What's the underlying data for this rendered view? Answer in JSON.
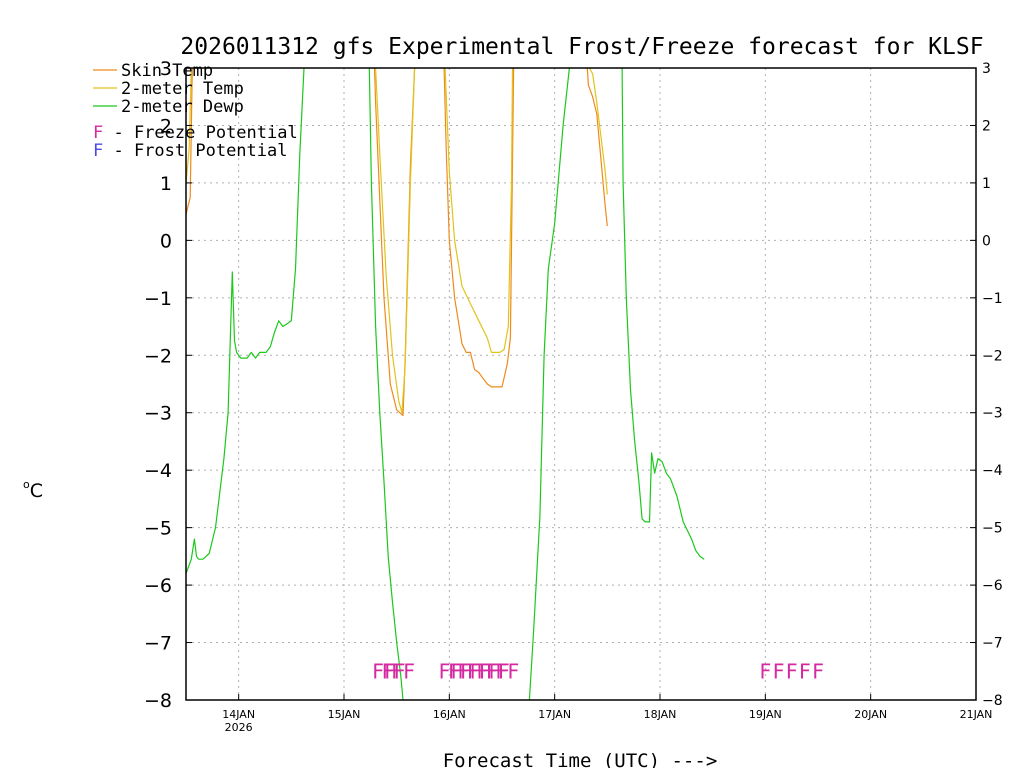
{
  "chart_data": {
    "type": "line",
    "title": "2026011312 gfs Experimental Frost/Freeze forecast for KLSF",
    "xlabel": "Forecast Time (UTC) --->",
    "ylabel": "°C",
    "ylabel_sup": "o",
    "ylabel_main": "C",
    "ylim": [
      -8,
      3
    ],
    "yticks": [
      3,
      2,
      1,
      0,
      -1,
      -2,
      -3,
      -4,
      -5,
      -6,
      -7,
      -8
    ],
    "ytick_labels_left": [
      "3",
      "2",
      "1",
      "0",
      "−1",
      "−2",
      "−3",
      "−4",
      "−5",
      "−6",
      "−7",
      "−8"
    ],
    "ytick_labels_right": [
      "3",
      "2",
      "1",
      "0",
      "−1",
      "−2",
      "−3",
      "−4",
      "−5",
      "−6",
      "−7",
      "−8"
    ],
    "xlim": [
      -0.5,
      7.0
    ],
    "xticks": [
      {
        "day": 0,
        "label": "14JAN",
        "sub": "2026"
      },
      {
        "day": 1,
        "label": "15JAN",
        "sub": ""
      },
      {
        "day": 2,
        "label": "16JAN",
        "sub": ""
      },
      {
        "day": 3,
        "label": "17JAN",
        "sub": ""
      },
      {
        "day": 4,
        "label": "18JAN",
        "sub": ""
      },
      {
        "day": 5,
        "label": "19JAN",
        "sub": ""
      },
      {
        "day": 6,
        "label": "20JAN",
        "sub": ""
      },
      {
        "day": 7,
        "label": "21JAN",
        "sub": ""
      }
    ],
    "x_units": "days since 14JAN 00Z",
    "grid": true,
    "legend": {
      "placement": "top-left",
      "entries": [
        {
          "label": "Skin Temp",
          "color": "#ef8a1c"
        },
        {
          "label": "2-meter Temp",
          "color": "#e0c41c"
        },
        {
          "label": "2-meter Dewp",
          "color": "#1cc81c"
        }
      ],
      "potentials": [
        {
          "letter": "F",
          "text": " - Freeze Potential",
          "color": "#d42aa0"
        },
        {
          "letter": "F",
          "text": " - Frost Potential",
          "color": "#4a4ae6"
        }
      ]
    },
    "series": [
      {
        "name": "Skin Temp",
        "color": "#ef8a1c",
        "segments": [
          [
            [
              -0.5,
              0.45
            ],
            [
              -0.46,
              0.75
            ],
            [
              -0.44,
              3.1
            ]
          ],
          [
            [
              1.29,
              3.1
            ],
            [
              1.3,
              2.4
            ],
            [
              1.38,
              -1.0
            ],
            [
              1.44,
              -2.5
            ],
            [
              1.5,
              -2.95
            ],
            [
              1.56,
              -3.05
            ],
            [
              1.58,
              -2.1
            ],
            [
              1.63,
              1.3
            ],
            [
              1.67,
              3.1
            ]
          ],
          [
            [
              1.95,
              3.1
            ],
            [
              1.97,
              1.6
            ],
            [
              2.0,
              0.0
            ],
            [
              2.05,
              -1.0
            ],
            [
              2.12,
              -1.8
            ],
            [
              2.16,
              -1.95
            ],
            [
              2.2,
              -1.95
            ],
            [
              2.24,
              -2.25
            ],
            [
              2.28,
              -2.3
            ],
            [
              2.32,
              -2.4
            ],
            [
              2.36,
              -2.5
            ],
            [
              2.4,
              -2.55
            ],
            [
              2.45,
              -2.55
            ],
            [
              2.5,
              -2.55
            ],
            [
              2.55,
              -2.15
            ],
            [
              2.58,
              -1.7
            ],
            [
              2.61,
              3.1
            ]
          ],
          [
            [
              3.31,
              3.1
            ],
            [
              3.32,
              2.7
            ],
            [
              3.36,
              2.5
            ],
            [
              3.4,
              2.2
            ],
            [
              3.44,
              1.4
            ],
            [
              3.48,
              0.6
            ],
            [
              3.5,
              0.25
            ]
          ]
        ]
      },
      {
        "name": "2-meter Temp",
        "color": "#e0c41c",
        "segments": [
          [
            [
              -0.5,
              1.0
            ],
            [
              -0.47,
              1.6
            ],
            [
              -0.45,
              3.1
            ]
          ],
          [
            [
              1.3,
              3.1
            ],
            [
              1.34,
              1.5
            ],
            [
              1.4,
              -0.6
            ],
            [
              1.46,
              -2.0
            ],
            [
              1.52,
              -2.8
            ],
            [
              1.55,
              -3.0
            ],
            [
              1.58,
              -2.2
            ],
            [
              1.63,
              1.0
            ],
            [
              1.67,
              3.1
            ]
          ],
          [
            [
              1.96,
              3.1
            ],
            [
              2.0,
              1.2
            ],
            [
              2.05,
              0.0
            ],
            [
              2.12,
              -0.8
            ],
            [
              2.2,
              -1.1
            ],
            [
              2.28,
              -1.4
            ],
            [
              2.36,
              -1.7
            ],
            [
              2.4,
              -1.95
            ],
            [
              2.48,
              -1.95
            ],
            [
              2.52,
              -1.9
            ],
            [
              2.56,
              -1.5
            ],
            [
              2.59,
              1.0
            ],
            [
              2.6,
              3.1
            ]
          ],
          [
            [
              3.33,
              3.1
            ],
            [
              3.36,
              2.9
            ],
            [
              3.4,
              2.4
            ],
            [
              3.44,
              1.8
            ],
            [
              3.48,
              1.2
            ],
            [
              3.5,
              0.8
            ]
          ]
        ]
      },
      {
        "name": "2-meter Dewp",
        "color": "#1cc81c",
        "segments": [
          [
            [
              -0.5,
              -5.8
            ],
            [
              -0.45,
              -5.55
            ],
            [
              -0.42,
              -5.2
            ],
            [
              -0.4,
              -5.5
            ],
            [
              -0.38,
              -5.55
            ],
            [
              -0.34,
              -5.55
            ],
            [
              -0.28,
              -5.45
            ],
            [
              -0.22,
              -5.0
            ],
            [
              -0.18,
              -4.4
            ],
            [
              -0.14,
              -3.8
            ],
            [
              -0.1,
              -3.0
            ],
            [
              -0.06,
              -0.55
            ],
            [
              -0.04,
              -1.75
            ],
            [
              -0.02,
              -1.95
            ],
            [
              0.02,
              -2.05
            ],
            [
              0.08,
              -2.05
            ],
            [
              0.12,
              -1.95
            ],
            [
              0.16,
              -2.05
            ],
            [
              0.2,
              -1.95
            ],
            [
              0.26,
              -1.95
            ],
            [
              0.3,
              -1.85
            ],
            [
              0.34,
              -1.6
            ],
            [
              0.38,
              -1.4
            ],
            [
              0.42,
              -1.5
            ],
            [
              0.46,
              -1.45
            ],
            [
              0.5,
              -1.4
            ],
            [
              0.54,
              -0.5
            ],
            [
              0.58,
              1.5
            ],
            [
              0.62,
              3.1
            ]
          ],
          [
            [
              1.24,
              3.1
            ],
            [
              1.26,
              1.0
            ],
            [
              1.3,
              -1.5
            ],
            [
              1.34,
              -3.0
            ],
            [
              1.38,
              -4.2
            ],
            [
              1.42,
              -5.5
            ],
            [
              1.46,
              -6.3
            ],
            [
              1.5,
              -7.0
            ],
            [
              1.54,
              -7.6
            ],
            [
              1.56,
              -8.0
            ]
          ],
          [
            [
              2.76,
              -8.0
            ],
            [
              2.8,
              -6.8
            ],
            [
              2.86,
              -4.8
            ],
            [
              2.9,
              -2.0
            ],
            [
              2.94,
              -0.5
            ],
            [
              3.0,
              0.3
            ],
            [
              3.08,
              2.0
            ],
            [
              3.14,
              3.1
            ]
          ],
          [
            [
              3.64,
              3.1
            ],
            [
              3.65,
              1.0
            ],
            [
              3.68,
              -1.0
            ],
            [
              3.72,
              -2.6
            ],
            [
              3.76,
              -3.5
            ],
            [
              3.8,
              -4.2
            ],
            [
              3.83,
              -4.85
            ],
            [
              3.86,
              -4.9
            ],
            [
              3.9,
              -4.9
            ],
            [
              3.92,
              -3.7
            ],
            [
              3.95,
              -4.05
            ],
            [
              3.98,
              -3.8
            ],
            [
              4.02,
              -3.85
            ],
            [
              4.06,
              -4.05
            ],
            [
              4.1,
              -4.15
            ],
            [
              4.16,
              -4.45
            ],
            [
              4.22,
              -4.9
            ],
            [
              4.26,
              -5.05
            ],
            [
              4.3,
              -5.2
            ],
            [
              4.34,
              -5.4
            ],
            [
              4.38,
              -5.5
            ],
            [
              4.42,
              -5.55
            ]
          ]
        ]
      }
    ],
    "freeze_markers": [
      {
        "text": "FF",
        "x": 1.38,
        "y": -7.5
      },
      {
        "text": "FF",
        "x": 1.47,
        "y": -7.5
      },
      {
        "text": "FF",
        "x": 1.56,
        "y": -7.5
      },
      {
        "text": "FF",
        "x": 2.01,
        "y": -7.5
      },
      {
        "text": "FF",
        "x": 2.1,
        "y": -7.5
      },
      {
        "text": "FF",
        "x": 2.19,
        "y": -7.5
      },
      {
        "text": "FF",
        "x": 2.28,
        "y": -7.5
      },
      {
        "text": "FF",
        "x": 2.37,
        "y": -7.5
      },
      {
        "text": "FF",
        "x": 2.46,
        "y": -7.5
      },
      {
        "text": "FF",
        "x": 2.55,
        "y": -7.5
      },
      {
        "text": "F",
        "x": 5.0,
        "y": -7.5
      },
      {
        "text": "F",
        "x": 5.125,
        "y": -7.5
      },
      {
        "text": "F",
        "x": 5.25,
        "y": -7.5
      },
      {
        "text": "F",
        "x": 5.375,
        "y": -7.5
      },
      {
        "text": "F",
        "x": 5.5,
        "y": -7.5
      }
    ],
    "freeze_color": "#d42aa0",
    "frost_color": "#4a4ae6",
    "axis_color": "#000000",
    "grid_color": "#b0b0b0"
  }
}
